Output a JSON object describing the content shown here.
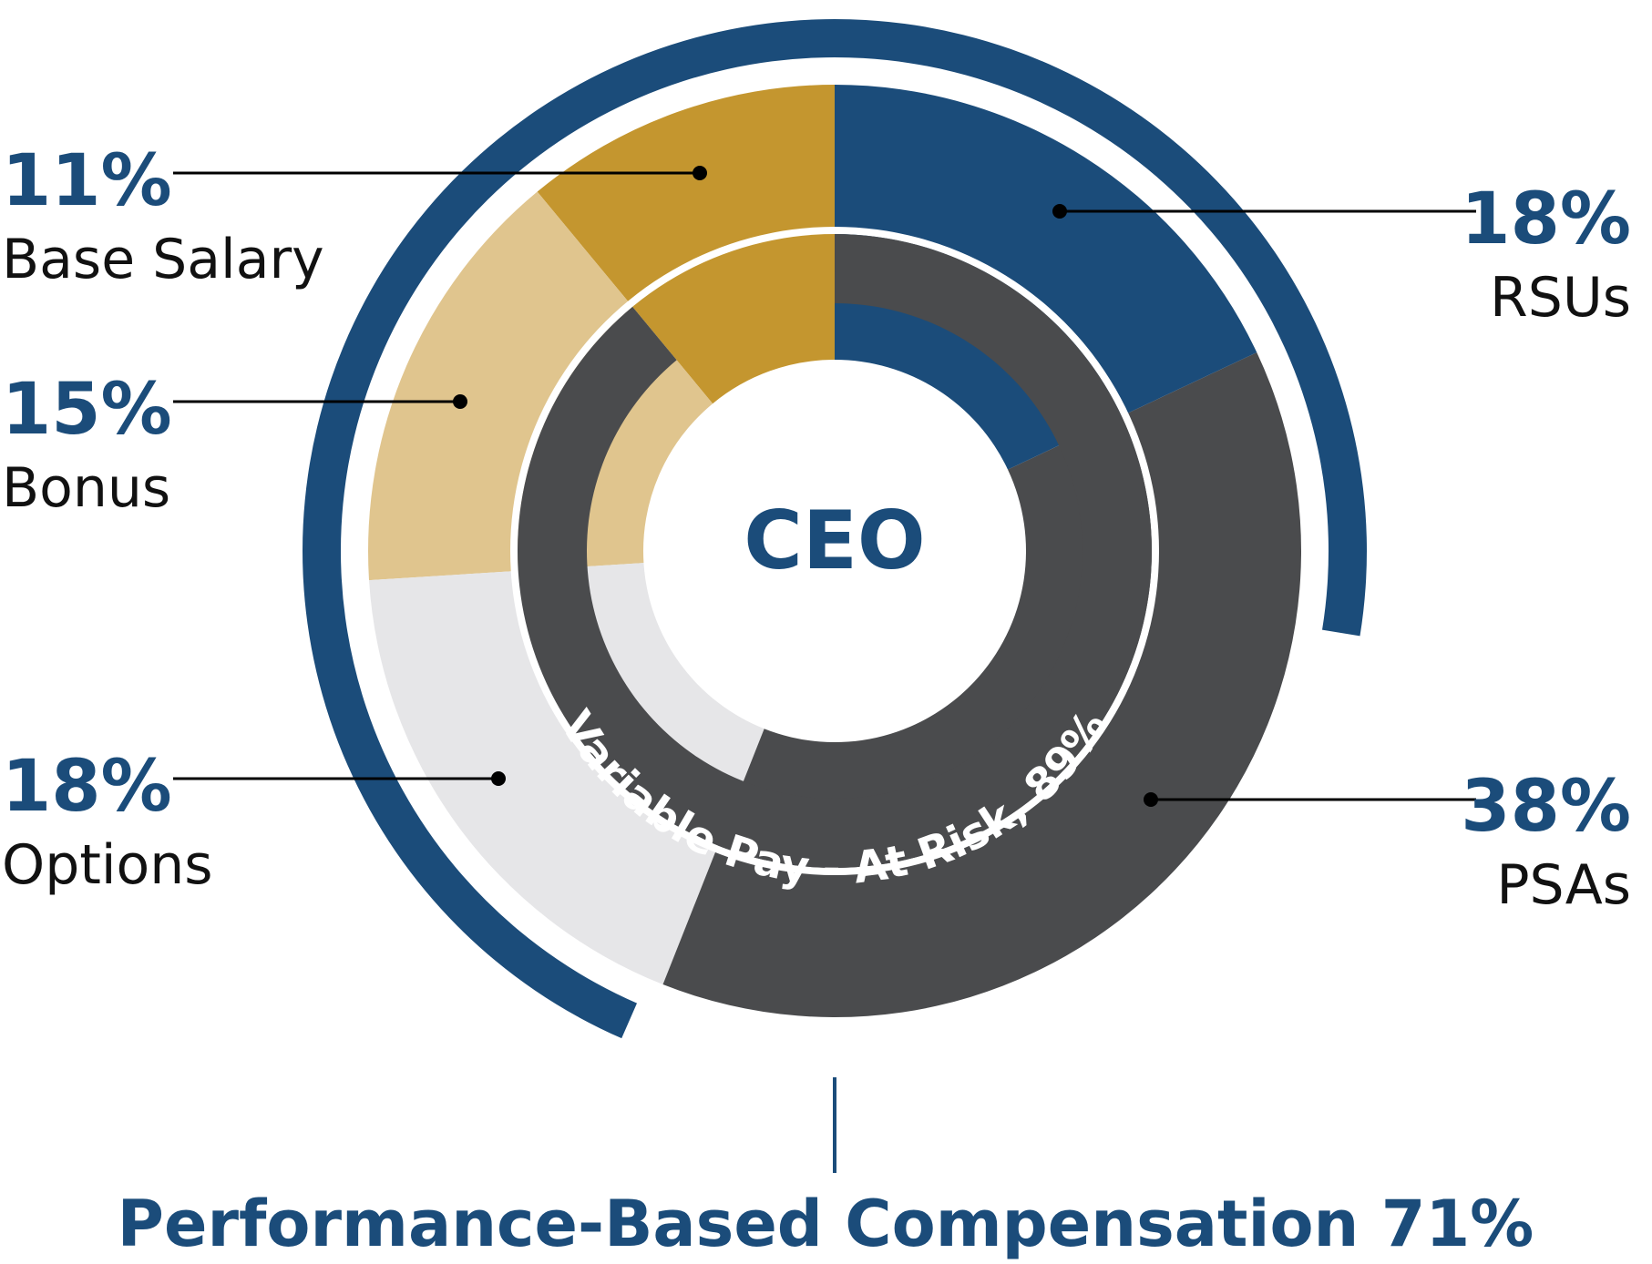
{
  "chart_data": {
    "type": "pie",
    "center_label": "CEO",
    "slices": [
      {
        "name": "Base Salary",
        "value": 11,
        "pct_label": "11%",
        "color": "#C4962F"
      },
      {
        "name": "Bonus",
        "value": 15,
        "pct_label": "15%",
        "color": "#E0C58E"
      },
      {
        "name": "Options",
        "value": 18,
        "pct_label": "18%",
        "color": "#E6E6E8"
      },
      {
        "name": "PSAs",
        "value": 38,
        "pct_label": "38%",
        "color": "#4A4B4D"
      },
      {
        "name": "RSUs",
        "value": 18,
        "pct_label": "18%",
        "color": "#1B4C7A"
      }
    ],
    "variable_pay": {
      "label": "Variable Pay - At Risk, 89%",
      "value": 89,
      "color": "#4A4B4D"
    },
    "performance_based": {
      "label": "Performance-Based Compensation 71%",
      "value": 71,
      "color": "#1B4C7A"
    }
  },
  "colors": {
    "accent": "#1B4C7A",
    "text": "#111111",
    "leader": "#000000"
  }
}
